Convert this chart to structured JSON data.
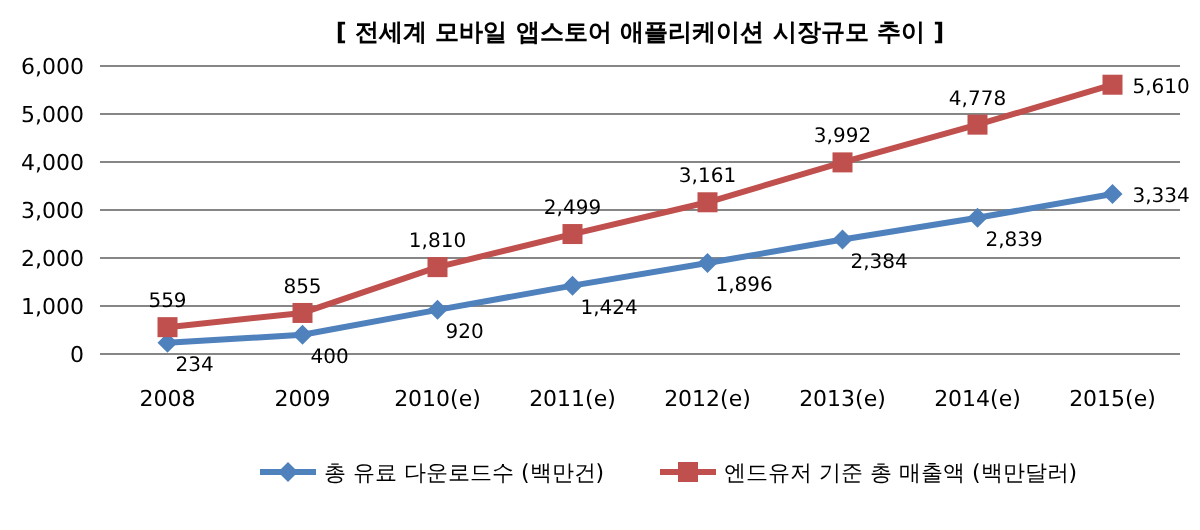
{
  "chart_data": {
    "type": "line",
    "title": "[ 전세계 모바일 앱스토어 애플리케이션 시장규모 추이 ]",
    "categories": [
      "2008",
      "2009",
      "2010(e)",
      "2011(e)",
      "2012(e)",
      "2013(e)",
      "2014(e)",
      "2015(e)"
    ],
    "series": [
      {
        "name": "총 유료 다운로드수 (백만건)",
        "color": "#4f81bd",
        "marker": "diamond",
        "values": [
          234,
          400,
          920,
          1424,
          1896,
          2384,
          2839,
          3334
        ],
        "value_labels": [
          "234",
          "400",
          "920",
          "1,424",
          "1,896",
          "2,384",
          "2,839",
          "3,334"
        ]
      },
      {
        "name": "엔드유저 기준 총 매출액 (백만달러)",
        "color": "#c0504d",
        "marker": "square",
        "values": [
          559,
          855,
          1810,
          2499,
          3161,
          3992,
          4778,
          5610
        ],
        "value_labels": [
          "559",
          "855",
          "1,810",
          "2,499",
          "3,161",
          "3,992",
          "4,778",
          "5,610"
        ]
      }
    ],
    "ylim": [
      0,
      6000
    ],
    "yticks": [
      {
        "value": 0,
        "label": "0"
      },
      {
        "value": 1000,
        "label": "1,000"
      },
      {
        "value": 2000,
        "label": "2,000"
      },
      {
        "value": 3000,
        "label": "3,000"
      },
      {
        "value": 4000,
        "label": "4,000"
      },
      {
        "value": 5000,
        "label": "5,000"
      },
      {
        "value": 6000,
        "label": "6,000"
      }
    ],
    "grid": "y",
    "legend": "bottom",
    "line_style": "solid"
  }
}
